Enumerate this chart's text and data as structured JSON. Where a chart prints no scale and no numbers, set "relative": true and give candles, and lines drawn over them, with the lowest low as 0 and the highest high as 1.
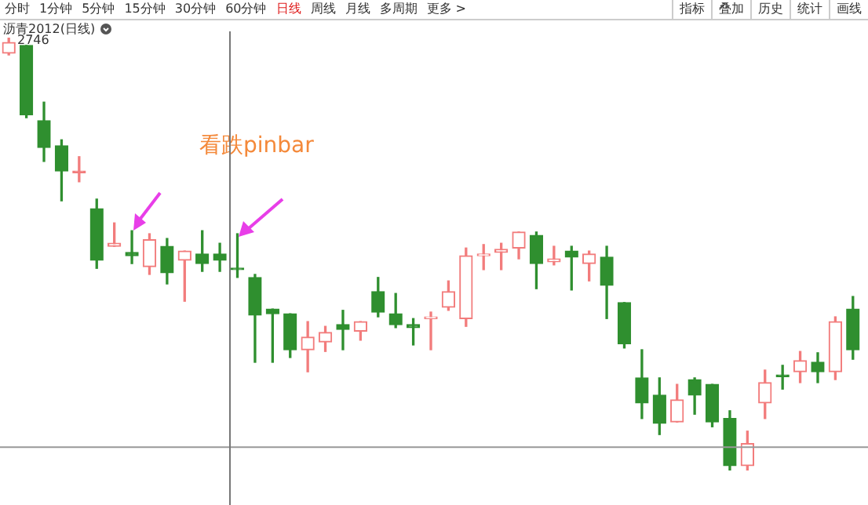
{
  "chart_data": {
    "type": "candlestick",
    "title": "沥青2012(日线)",
    "relative": true,
    "ref_lines": [
      {
        "axis": "y",
        "value": 0.054,
        "color": "#999999"
      }
    ],
    "annotations": [
      "看跌pinbar",
      "2746",
      "分时",
      "1分钟",
      "5分钟",
      "15分钟",
      "30分钟",
      "60分钟",
      "日线",
      "周线",
      "月线",
      "多周期",
      "更多 >",
      "指标",
      "叠加",
      "历史",
      "统计",
      "画线"
    ],
    "categories": [
      null,
      null,
      null,
      null,
      null,
      null,
      null,
      null,
      null,
      null,
      null,
      null,
      null,
      null,
      null,
      null,
      null,
      null,
      null,
      null,
      null,
      null,
      null,
      null,
      null,
      null,
      null,
      null,
      null,
      null,
      null,
      null,
      null,
      null,
      null,
      null,
      null,
      null,
      null,
      null,
      null,
      null,
      null,
      null,
      null,
      null,
      null,
      null,
      null
    ],
    "colors": [
      "#f27c7c",
      "#2f8f2f",
      "#2f8f2f",
      "#2f8f2f",
      "#f27c7c",
      "#2f8f2f",
      "#f27c7c",
      "#2f8f2f",
      "#f27c7c",
      "#2f8f2f",
      "#f27c7c",
      "#2f8f2f",
      "#2f8f2f",
      "#2f8f2f",
      "#2f8f2f",
      "#2f8f2f",
      "#2f8f2f",
      "#f27c7c",
      "#f27c7c",
      "#2f8f2f",
      "#f27c7c",
      "#2f8f2f",
      "#2f8f2f",
      "#2f8f2f",
      "#f27c7c",
      "#f27c7c",
      "#f27c7c",
      "#f27c7c",
      "#f27c7c",
      "#f27c7c",
      "#2f8f2f",
      "#f27c7c",
      "#2f8f2f",
      "#f27c7c",
      "#2f8f2f",
      "#2f8f2f",
      "#2f8f2f",
      "#2f8f2f",
      "#f27c7c",
      "#2f8f2f",
      "#2f8f2f",
      "#2f8f2f",
      "#f27c7c",
      "#f27c7c",
      "#2f8f2f",
      "#f27c7c",
      "#2f8f2f",
      "#f27c7c",
      "#2f8f2f"
    ],
    "ohlc": [
      [
        0.964,
        1.0,
        0.96,
        0.989
      ],
      [
        0.982,
        0.982,
        0.815,
        0.822
      ],
      [
        0.808,
        0.851,
        0.714,
        0.746
      ],
      [
        0.75,
        0.764,
        0.623,
        0.692
      ],
      [
        0.688,
        0.725,
        0.667,
        0.688
      ],
      [
        0.605,
        0.627,
        0.467,
        0.486
      ],
      [
        0.518,
        0.572,
        0.518,
        0.525
      ],
      [
        0.504,
        0.554,
        0.478,
        0.496
      ],
      [
        0.471,
        0.547,
        0.453,
        0.533
      ],
      [
        0.518,
        0.536,
        0.431,
        0.457
      ],
      [
        0.486,
        0.507,
        0.391,
        0.507
      ],
      [
        0.5,
        0.554,
        0.46,
        0.478
      ],
      [
        0.5,
        0.525,
        0.46,
        0.486
      ],
      [
        0.467,
        0.547,
        0.446,
        0.464
      ],
      [
        0.446,
        0.453,
        0.25,
        0.359
      ],
      [
        0.373,
        0.373,
        0.25,
        0.362
      ],
      [
        0.362,
        0.362,
        0.261,
        0.279
      ],
      [
        0.279,
        0.344,
        0.228,
        0.308
      ],
      [
        0.297,
        0.333,
        0.275,
        0.319
      ],
      [
        0.337,
        0.37,
        0.279,
        0.326
      ],
      [
        0.322,
        0.344,
        0.301,
        0.344
      ],
      [
        0.413,
        0.446,
        0.355,
        0.366
      ],
      [
        0.362,
        0.409,
        0.33,
        0.337
      ],
      [
        0.337,
        0.351,
        0.29,
        0.33
      ],
      [
        0.351,
        0.366,
        0.279,
        0.355
      ],
      [
        0.377,
        0.438,
        0.37,
        0.413
      ],
      [
        0.351,
        0.514,
        0.333,
        0.496
      ],
      [
        0.496,
        0.522,
        0.464,
        0.5
      ],
      [
        0.504,
        0.525,
        0.464,
        0.511
      ],
      [
        0.514,
        0.551,
        0.489,
        0.551
      ],
      [
        0.543,
        0.551,
        0.42,
        0.478
      ],
      [
        0.482,
        0.518,
        0.475,
        0.489
      ],
      [
        0.507,
        0.518,
        0.417,
        0.493
      ],
      [
        0.478,
        0.507,
        0.438,
        0.5
      ],
      [
        0.493,
        0.518,
        0.351,
        0.428
      ],
      [
        0.388,
        0.388,
        0.283,
        0.293
      ],
      [
        0.214,
        0.279,
        0.12,
        0.156
      ],
      [
        0.174,
        0.214,
        0.083,
        0.109
      ],
      [
        0.112,
        0.199,
        0.112,
        0.163
      ],
      [
        0.21,
        0.214,
        0.13,
        0.174
      ],
      [
        0.199,
        0.199,
        0.101,
        0.112
      ],
      [
        0.12,
        0.138,
        0,
        0.011
      ],
      [
        0.011,
        0.091,
        0,
        0.062
      ],
      [
        0.156,
        0.232,
        0.12,
        0.203
      ],
      [
        0.217,
        0.243,
        0.188,
        0.217
      ],
      [
        0.228,
        0.275,
        0.203,
        0.254
      ],
      [
        0.25,
        0.272,
        0.203,
        0.228
      ],
      [
        0.228,
        0.355,
        0.21,
        0.344
      ],
      [
        0.373,
        0.402,
        0.257,
        0.279
      ]
    ]
  }
}
